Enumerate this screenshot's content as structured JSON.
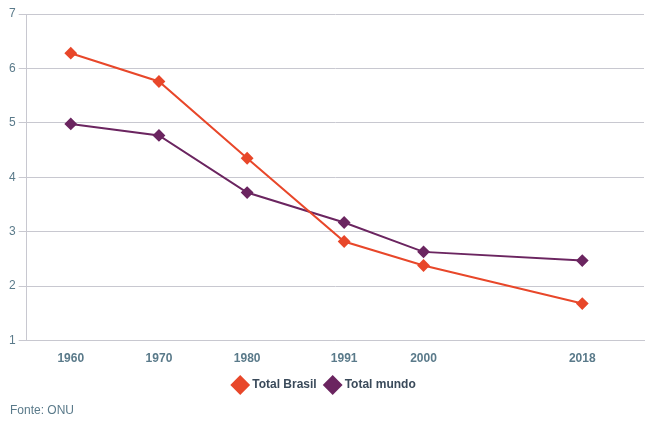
{
  "chart_data": {
    "type": "line",
    "x": [
      1960,
      1970,
      1980,
      1991,
      2000,
      2018
    ],
    "series": [
      {
        "name": "Total Brasil",
        "color": "#e8472a",
        "values": [
          6.28,
          5.76,
          4.35,
          2.82,
          2.38,
          1.68
        ]
      },
      {
        "name": "Total mundo",
        "color": "#6b2560",
        "values": [
          4.98,
          4.77,
          3.72,
          3.17,
          2.63,
          2.47
        ]
      }
    ],
    "xlim": [
      1955,
      2025
    ],
    "xticks": [
      1960,
      1970,
      1980,
      1991,
      2000,
      2018
    ],
    "ylim": [
      1,
      7
    ],
    "yticks": [
      1,
      2,
      3,
      4,
      5,
      6,
      7
    ],
    "grid": true,
    "legend": "bottom",
    "marker": "diamond",
    "annotations": [
      "Fonte: ONU"
    ]
  }
}
